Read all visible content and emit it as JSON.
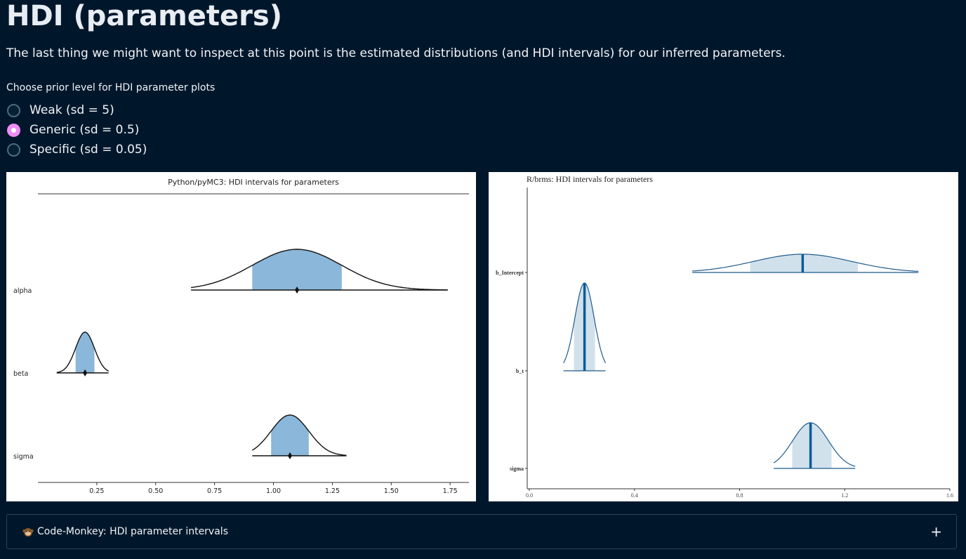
{
  "page": {
    "title": "HDI (parameters)",
    "intro": "The last thing we might want to inspect at this point is the estimated distributions (and HDI intervals) for our inferred parameters."
  },
  "radio": {
    "label": "Choose prior level for HDI parameter plots",
    "options": [
      {
        "label": "Weak (sd = 5)",
        "checked": false
      },
      {
        "label": "Generic (sd = 0.5)",
        "checked": true
      },
      {
        "label": "Specific (sd = 0.05)",
        "checked": false
      }
    ],
    "accent_color": "#f08df5"
  },
  "expander": {
    "icon": "monkey-icon",
    "label": "Code-Monkey: HDI parameter intervals",
    "toggle": "+"
  },
  "chart_data": [
    {
      "type": "ridge-density",
      "title": "Python/pyMC3: HDI intervals for parameters",
      "xlim": [
        0.0,
        1.83
      ],
      "xticks": [
        "0.25",
        "0.50",
        "0.75",
        "1.00",
        "1.25",
        "1.50",
        "1.75"
      ],
      "fill_color": "#8ab7da",
      "series": [
        {
          "name": "alpha",
          "mean": 1.1,
          "hdi_low": 0.91,
          "hdi_high": 1.29,
          "range_low": 0.65,
          "range_high": 1.74
        },
        {
          "name": "beta",
          "mean": 0.2,
          "hdi_low": 0.16,
          "hdi_high": 0.24,
          "range_low": 0.08,
          "range_high": 0.3
        },
        {
          "name": "sigma",
          "mean": 1.07,
          "hdi_low": 0.99,
          "hdi_high": 1.15,
          "range_low": 0.91,
          "range_high": 1.31
        }
      ]
    },
    {
      "type": "ridge-density",
      "title": "R/brms: HDI intervals for parameters",
      "xlim": [
        0.0,
        1.6
      ],
      "xticks": [
        "0.0",
        "0.4",
        "0.8",
        "1.2",
        "1.6"
      ],
      "fill_color": "#d1e1ec",
      "line_color": "#1e5b8c",
      "series": [
        {
          "name": "b_Intercept",
          "mean": 1.04,
          "hdi_low": 0.84,
          "hdi_high": 1.25,
          "range_low": 0.62,
          "range_high": 1.48
        },
        {
          "name": "b_t",
          "mean": 0.21,
          "hdi_low": 0.17,
          "hdi_high": 0.25,
          "range_low": 0.13,
          "range_high": 0.29
        },
        {
          "name": "sigma",
          "mean": 1.07,
          "hdi_low": 1.0,
          "hdi_high": 1.15,
          "range_low": 0.93,
          "range_high": 1.24
        }
      ]
    }
  ]
}
